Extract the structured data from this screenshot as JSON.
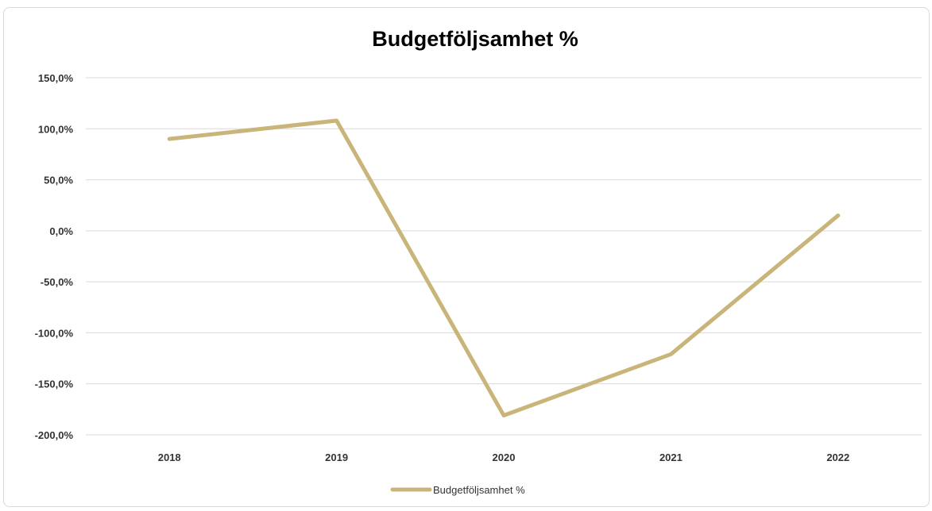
{
  "chart_data": {
    "type": "line",
    "title": "Budgetföljsamhet %",
    "xlabel": "",
    "ylabel": "",
    "categories": [
      "2018",
      "2019",
      "2020",
      "2021",
      "2022"
    ],
    "series": [
      {
        "name": "Budgetföljsamhet %",
        "values": [
          90,
          108,
          -181,
          -121,
          15
        ],
        "color": "#c9b57a"
      }
    ],
    "ylim": [
      -200,
      150
    ],
    "yticks": [
      150,
      100,
      50,
      0,
      -50,
      -100,
      -150,
      -200
    ],
    "ytick_labels": [
      "150,0%",
      "100,0%",
      "50,0%",
      "0,0%",
      "-50,0%",
      "-100,0%",
      "-150,0%",
      "-200,0%"
    ],
    "grid": true,
    "legend": "bottom-center",
    "gridline_color": "#d9d9d9"
  }
}
